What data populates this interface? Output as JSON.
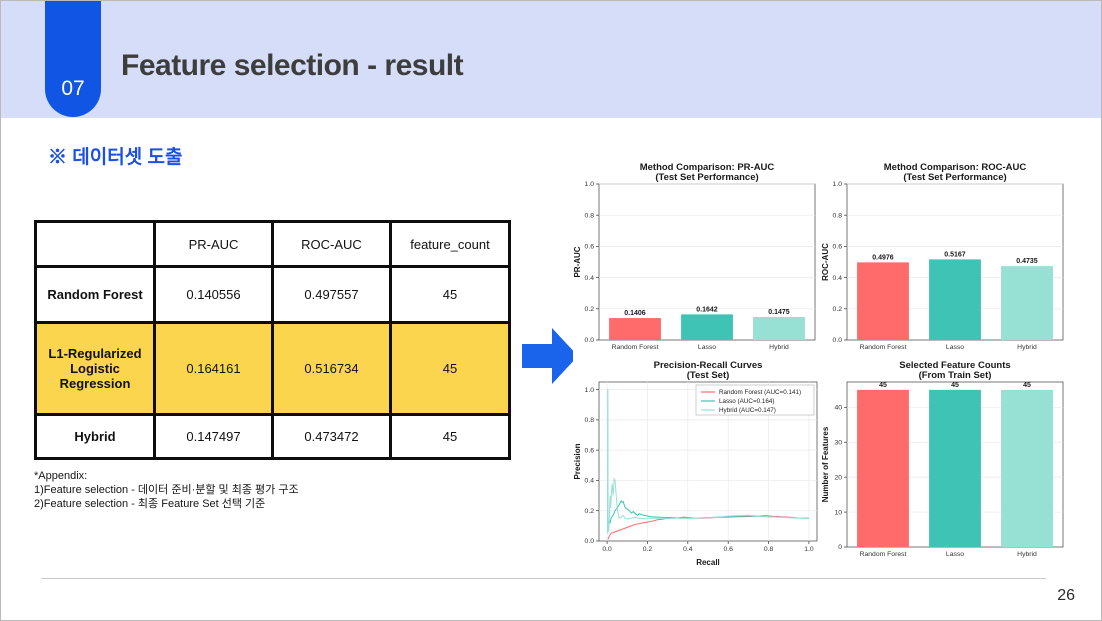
{
  "slide": {
    "badge": "07",
    "title": "Feature selection - result",
    "section_heading": "※ 데이터셋 도출",
    "page_number": "26"
  },
  "colors": {
    "header-band": "#d5ddf8",
    "badge-blue": "#1155e4",
    "heading-blue": "#1b50e2",
    "arrow-blue": "#1a64ec",
    "highlight-yellow": "#fbd54d",
    "title-gray": "#3d3d3d",
    "bar-red": "#FF6B6B",
    "bar-teal": "#3EC3B4",
    "bar-mint": "#96E0D4"
  },
  "table": {
    "headers": [
      "",
      "PR-AUC",
      "ROC-AUC",
      "feature_count"
    ],
    "rows": [
      {
        "label": "Random Forest",
        "values": [
          "0.140556",
          "0.497557",
          "45"
        ],
        "highlight": false
      },
      {
        "label": "L1-Regularized Logistic Regression",
        "values": [
          "0.164161",
          "0.516734",
          "45"
        ],
        "highlight": true
      },
      {
        "label": "Hybrid",
        "values": [
          "0.147497",
          "0.473472",
          "45"
        ],
        "highlight": false
      }
    ]
  },
  "appendix": {
    "lines": [
      "*Appendix:",
      "1)Feature selection - 데이터 준비·분할 및 최종 평가 구조",
      "2)Feature selection - 최종 Feature Set 선택 기준"
    ]
  },
  "chart_data": [
    {
      "type": "bar",
      "title": [
        "Method Comparison: PR-AUC",
        "(Test Set Performance)"
      ],
      "ylabel": "PR-AUC",
      "categories": [
        "Random Forest",
        "Lasso",
        "Hybrid"
      ],
      "values": [
        0.1406,
        0.1642,
        0.1475
      ],
      "bar_labels": [
        "0.1406",
        "0.1642",
        "0.1475"
      ],
      "colors": [
        "#FF6B6B",
        "#3EC3B4",
        "#96E0D4"
      ],
      "ylim": [
        0,
        1.0
      ],
      "yticks": [
        0,
        0.2,
        0.4,
        0.6,
        0.8,
        1.0
      ],
      "ytick_labels": [
        "0.0",
        "0.2",
        "0.4",
        "0.6",
        "0.8",
        "1.0"
      ]
    },
    {
      "type": "bar",
      "title": [
        "Method Comparison: ROC-AUC",
        "(Test Set Performance)"
      ],
      "ylabel": "ROC-AUC",
      "categories": [
        "Random Forest",
        "Lasso",
        "Hybrid"
      ],
      "values": [
        0.4976,
        0.5167,
        0.4735
      ],
      "bar_labels": [
        "0.4976",
        "0.5167",
        "0.4735"
      ],
      "colors": [
        "#FF6B6B",
        "#3EC3B4",
        "#96E0D4"
      ],
      "ylim": [
        0,
        1.0
      ],
      "yticks": [
        0,
        0.2,
        0.4,
        0.6,
        0.8,
        1.0
      ],
      "ytick_labels": [
        "0.0",
        "0.2",
        "0.4",
        "0.6",
        "0.8",
        "1.0"
      ]
    },
    {
      "type": "line",
      "title": [
        "Precision-Recall Curves",
        "(Test Set)"
      ],
      "xlabel": "Recall",
      "ylabel": "Precision",
      "xlim": [
        -0.04,
        1.04
      ],
      "ylim": [
        0,
        1.05
      ],
      "xticks": [
        0,
        0.2,
        0.4,
        0.6,
        0.8,
        1.0
      ],
      "xtick_labels": [
        "0.0",
        "0.2",
        "0.4",
        "0.6",
        "0.8",
        "1.0"
      ],
      "yticks": [
        0,
        0.2,
        0.4,
        0.6,
        0.8,
        1.0
      ],
      "ytick_labels": [
        "0.0",
        "0.2",
        "0.4",
        "0.6",
        "0.8",
        "1.0"
      ],
      "legend_position": "top-right",
      "series": [
        {
          "name": "Random Forest (AUC=0.141)",
          "color": "#FF6B6B",
          "points": [
            [
              0.004,
              0.01
            ],
            [
              0.01,
              0.03
            ],
            [
              0.02,
              0.05
            ],
            [
              0.04,
              0.06
            ],
            [
              0.06,
              0.07
            ],
            [
              0.08,
              0.08
            ],
            [
              0.1,
              0.09
            ],
            [
              0.12,
              0.1
            ],
            [
              0.14,
              0.11
            ],
            [
              0.16,
              0.115
            ],
            [
              0.18,
              0.12
            ],
            [
              0.2,
              0.125
            ],
            [
              0.22,
              0.13
            ],
            [
              0.25,
              0.14
            ],
            [
              0.28,
              0.145
            ],
            [
              0.3,
              0.15
            ],
            [
              0.35,
              0.152
            ],
            [
              0.38,
              0.158
            ],
            [
              0.4,
              0.155
            ],
            [
              0.45,
              0.15
            ],
            [
              0.5,
              0.152
            ],
            [
              0.55,
              0.155
            ],
            [
              0.6,
              0.158
            ],
            [
              0.65,
              0.16
            ],
            [
              0.7,
              0.162
            ],
            [
              0.75,
              0.165
            ],
            [
              0.78,
              0.168
            ],
            [
              0.82,
              0.163
            ],
            [
              0.86,
              0.16
            ],
            [
              0.9,
              0.158
            ],
            [
              0.95,
              0.152
            ],
            [
              1.0,
              0.15
            ]
          ]
        },
        {
          "name": "Lasso (AUC=0.164)",
          "color": "#3EC3B4",
          "points": [
            [
              0.002,
              0.1
            ],
            [
              0.004,
              0.12
            ],
            [
              0.006,
              0.1
            ],
            [
              0.01,
              0.13
            ],
            [
              0.015,
              0.12
            ],
            [
              0.02,
              0.15
            ],
            [
              0.03,
              0.17
            ],
            [
              0.04,
              0.2
            ],
            [
              0.05,
              0.22
            ],
            [
              0.06,
              0.24
            ],
            [
              0.07,
              0.265
            ],
            [
              0.075,
              0.255
            ],
            [
              0.08,
              0.26
            ],
            [
              0.09,
              0.22
            ],
            [
              0.1,
              0.21
            ],
            [
              0.11,
              0.2
            ],
            [
              0.12,
              0.185
            ],
            [
              0.13,
              0.195
            ],
            [
              0.14,
              0.18
            ],
            [
              0.15,
              0.17
            ],
            [
              0.16,
              0.18
            ],
            [
              0.17,
              0.175
            ],
            [
              0.18,
              0.17
            ],
            [
              0.2,
              0.165
            ],
            [
              0.22,
              0.16
            ],
            [
              0.25,
              0.158
            ],
            [
              0.3,
              0.155
            ],
            [
              0.35,
              0.152
            ],
            [
              0.4,
              0.15
            ],
            [
              0.45,
              0.152
            ],
            [
              0.5,
              0.155
            ],
            [
              0.55,
              0.158
            ],
            [
              0.6,
              0.16
            ],
            [
              0.65,
              0.163
            ],
            [
              0.7,
              0.165
            ],
            [
              0.75,
              0.163
            ],
            [
              0.8,
              0.16
            ],
            [
              0.85,
              0.158
            ],
            [
              0.9,
              0.155
            ],
            [
              0.95,
              0.152
            ],
            [
              1.0,
              0.15
            ]
          ]
        },
        {
          "name": "Hybrid (AUC=0.147)",
          "color": "#96E0D4",
          "points": [
            [
              0.002,
              0.05
            ],
            [
              0.003,
              1.0
            ],
            [
              0.004,
              1.0
            ],
            [
              0.005,
              0.1
            ],
            [
              0.008,
              0.06
            ],
            [
              0.012,
              0.18
            ],
            [
              0.015,
              0.3
            ],
            [
              0.018,
              0.22
            ],
            [
              0.02,
              0.28
            ],
            [
              0.025,
              0.38
            ],
            [
              0.03,
              0.3
            ],
            [
              0.035,
              0.41
            ],
            [
              0.04,
              0.4
            ],
            [
              0.045,
              0.3
            ],
            [
              0.05,
              0.22
            ],
            [
              0.055,
              0.18
            ],
            [
              0.06,
              0.15
            ],
            [
              0.07,
              0.16
            ],
            [
              0.08,
              0.17
            ],
            [
              0.09,
              0.15
            ],
            [
              0.1,
              0.145
            ],
            [
              0.12,
              0.15
            ],
            [
              0.14,
              0.155
            ],
            [
              0.16,
              0.15
            ],
            [
              0.18,
              0.148
            ],
            [
              0.2,
              0.15
            ],
            [
              0.25,
              0.15
            ],
            [
              0.3,
              0.148
            ],
            [
              0.35,
              0.15
            ],
            [
              0.4,
              0.15
            ],
            [
              0.45,
              0.152
            ],
            [
              0.5,
              0.154
            ],
            [
              0.55,
              0.156
            ],
            [
              0.6,
              0.165
            ],
            [
              0.65,
              0.168
            ],
            [
              0.7,
              0.17
            ],
            [
              0.75,
              0.165
            ],
            [
              0.8,
              0.16
            ],
            [
              0.85,
              0.157
            ],
            [
              0.9,
              0.154
            ],
            [
              0.95,
              0.152
            ],
            [
              1.0,
              0.15
            ]
          ]
        }
      ]
    },
    {
      "type": "bar",
      "title": [
        "Selected Feature Counts",
        "(From Train Set)"
      ],
      "ylabel": "Number of Features",
      "categories": [
        "Random Forest",
        "Lasso",
        "Hybrid"
      ],
      "values": [
        45,
        45,
        45
      ],
      "bar_labels": [
        "45",
        "45",
        "45"
      ],
      "colors": [
        "#FF6B6B",
        "#3EC3B4",
        "#96E0D4"
      ],
      "ylim": [
        0,
        47.25
      ],
      "yticks": [
        0,
        10,
        20,
        30,
        40
      ],
      "ytick_labels": [
        "0",
        "10",
        "20",
        "30",
        "40"
      ]
    }
  ]
}
